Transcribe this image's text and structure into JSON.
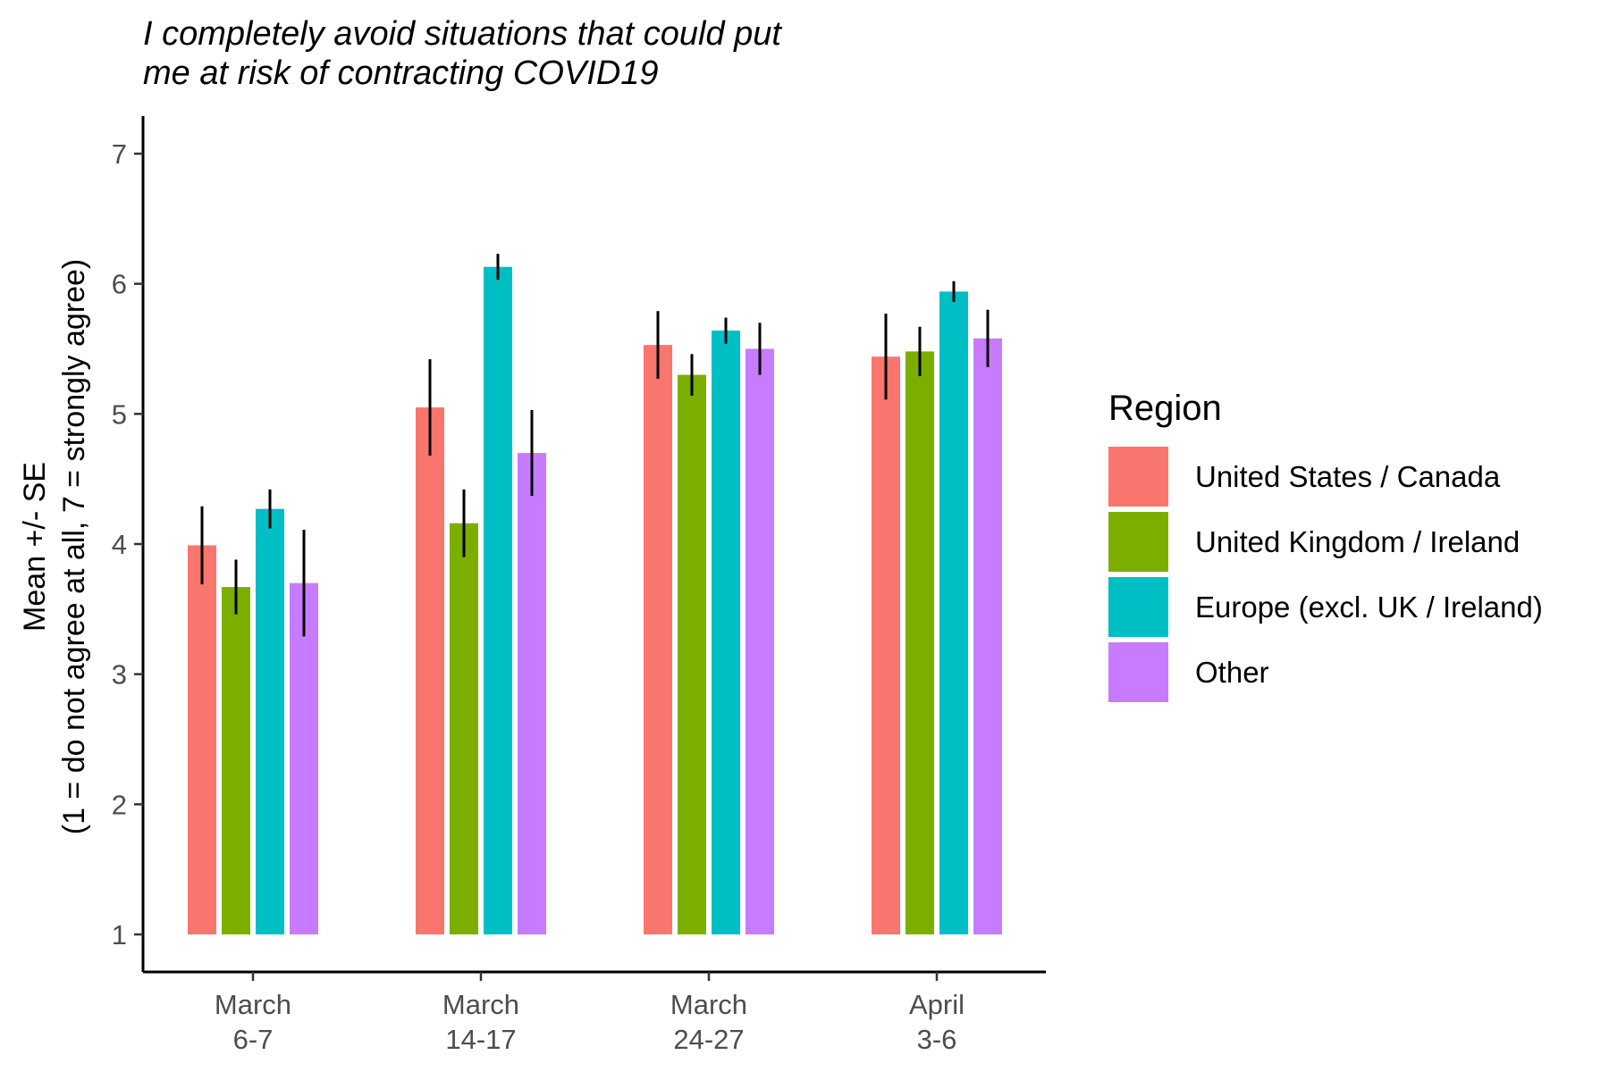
{
  "chart_data": {
    "type": "bar",
    "title_lines": [
      "I completely avoid situations that could put",
      "me at risk of contracting COVID19"
    ],
    "ylabel_lines": [
      "Mean +/- SE",
      "(1 = do not agree at all, 7 = strongly agree)"
    ],
    "xlabel": "",
    "ylim": [
      1,
      7
    ],
    "yticks": [
      1,
      2,
      3,
      4,
      5,
      6,
      7
    ],
    "grid": false,
    "categories": [
      [
        "March",
        "6-7"
      ],
      [
        "March",
        "14-17"
      ],
      [
        "March",
        "24-27"
      ],
      [
        "April",
        "3-6"
      ]
    ],
    "legend": {
      "title": "Region",
      "placement": "right"
    },
    "series": [
      {
        "name": "United States / Canada",
        "color": "#F8766D",
        "values": [
          3.99,
          5.05,
          5.53,
          5.44
        ],
        "errors": [
          0.3,
          0.37,
          0.26,
          0.33
        ]
      },
      {
        "name": "United Kingdom / Ireland",
        "color": "#7CAE00",
        "values": [
          3.67,
          4.16,
          5.3,
          5.48
        ],
        "errors": [
          0.21,
          0.26,
          0.16,
          0.19
        ]
      },
      {
        "name": "Europe (excl. UK / Ireland)",
        "color": "#00BFC4",
        "values": [
          4.27,
          6.13,
          5.64,
          5.94
        ],
        "errors": [
          0.15,
          0.1,
          0.1,
          0.08
        ]
      },
      {
        "name": "Other",
        "color": "#C77CFF",
        "values": [
          3.7,
          4.7,
          5.5,
          5.58
        ],
        "errors": [
          0.41,
          0.33,
          0.2,
          0.22
        ]
      }
    ]
  }
}
